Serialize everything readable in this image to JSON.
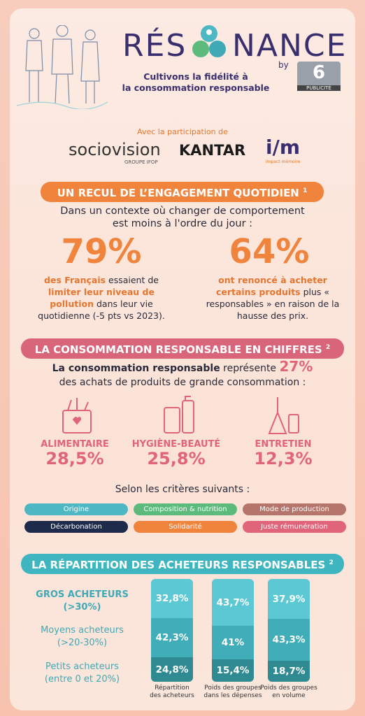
{
  "header": {
    "logo_left": "RÉS",
    "logo_right": "NANCE",
    "by": "by",
    "m6": "6",
    "m6_sub": "PUBLICITÉ",
    "tagline": [
      "Cultivons la fidélité à",
      "la consommation responsable"
    ]
  },
  "partners": {
    "intro": "Avec la participation de",
    "sociovision": "sociovision",
    "sociovision_sub": "GROUPE IFOP",
    "kantar": "KANTAR",
    "im": "i/m",
    "im_sub": "impact mémoire"
  },
  "section1": {
    "title": "UN RECUL DE L’ENGAGEMENT QUOTIDIEN",
    "note": "1",
    "intro": [
      "Dans un contexte où changer de comportement",
      "est moins à l'ordre du jour :"
    ],
    "stats": [
      {
        "value": "79%",
        "parts": [
          {
            "text": "des Français",
            "bold": true
          },
          {
            "text": " essaient de ",
            "bold": false
          },
          {
            "text": "limiter leur niveau de pollution",
            "bold": true
          },
          {
            "text": " dans leur vie quotidienne (-5 pts vs 2023).",
            "bold": false
          }
        ]
      },
      {
        "value": "64%",
        "parts": [
          {
            "text": "ont renoncé à acheter certains produits",
            "bold": true
          },
          {
            "text": " plus « responsables » en raison de la hausse des prix.",
            "bold": false
          }
        ]
      }
    ]
  },
  "section2": {
    "title": "LA CONSOMMATION RESPONSABLE EN CHIFFRES",
    "note": "2",
    "lead_bold": "La consommation responsable",
    "lead_text": " représente ",
    "lead_value": "27%",
    "lead_line2": "des achats de produits de grande consommation :",
    "categories": [
      {
        "label": "ALIMENTAIRE",
        "value": "28,5%"
      },
      {
        "label": "HYGIÈNE-BEAUTÉ",
        "value": "25,8%"
      },
      {
        "label": "ENTRETIEN",
        "value": "12,3%"
      }
    ],
    "criteria_intro": "Selon les critères suivants :",
    "criteria": [
      {
        "label": "Origine",
        "color": "#4db8c4"
      },
      {
        "label": "Composition & nutrition",
        "color": "#5cba7d"
      },
      {
        "label": "Mode de production",
        "color": "#b5756a"
      },
      {
        "label": "Décarbonation",
        "color": "#1f2b4a"
      },
      {
        "label": "Solidarité",
        "color": "#f0843c"
      },
      {
        "label": "Juste rémunération",
        "color": "#e0647a"
      }
    ]
  },
  "section3": {
    "title": "LA RÉPARTITION DES ACHETEURS RESPONSABLES",
    "note": "2",
    "rows": [
      {
        "label": "GROS ACHETEURS",
        "sub": "(>30%)"
      },
      {
        "label": "Moyens acheteurs",
        "sub": "(>20-30%)"
      },
      {
        "label": "Petits acheteurs",
        "sub": "(entre 0 et 20%)"
      }
    ],
    "columns": [
      {
        "caption": [
          "Répartition",
          "des acheteurs"
        ],
        "segments": [
          "32,8%",
          "42,3%",
          "24,8%"
        ]
      },
      {
        "caption": [
          "Poids des groupes",
          "dans les dépenses"
        ],
        "segments": [
          "43,7%",
          "41%",
          "15,4%"
        ]
      },
      {
        "caption": [
          "Poids des groupes",
          "en volume"
        ],
        "segments": [
          "37,9%",
          "43,3%",
          "18,7%"
        ]
      }
    ]
  }
}
